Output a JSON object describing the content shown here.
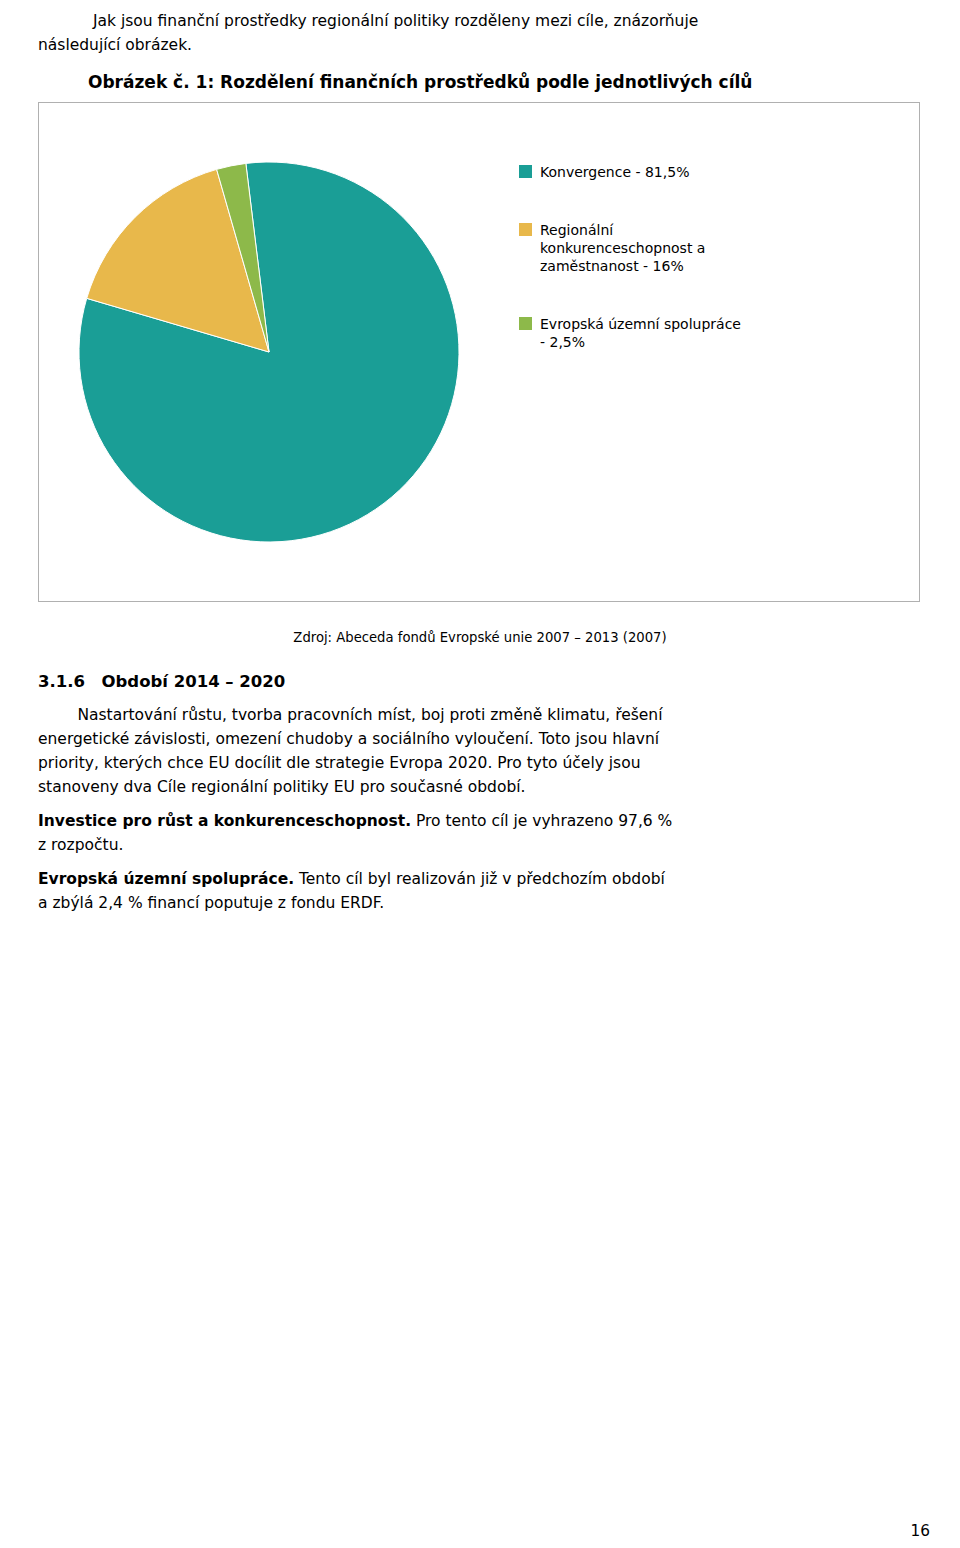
{
  "chart_data": {
    "type": "pie",
    "title": "Obrázek č. 1: Rozdělení finančních prostředků podle jednotlivých cílů",
    "categories": [
      "Konvergence - 81,5%",
      "Regionální konkurenceschopnost a zaměstnanost - 16%",
      "Evropská územní spolupráce - 2,5%"
    ],
    "values": [
      81.5,
      16.0,
      2.5
    ],
    "colors": [
      "#1a9e96",
      "#e8b84b",
      "#8db94a"
    ],
    "legend": "right",
    "annotations": [
      "Jak jsou finanční prostředky regionální politiky rozděleny mezi cíle, znázorňuje",
      "následující obrázek.",
      "Zdroj: Abeceda fondů Evropské unie 2007 – 2013 (2007)",
      "3.1.6",
      "  Období 2014 – 2020",
      "        Nastartování růstu, tvorba pracovních míst, boj proti změně klimatu, řešení",
      "energetické závislosti, omezení chudoby a sociálního vyloučení. Toto jsou hlavní",
      "priority, kterých chce EU docílit dle strategie Evropa 2020. Pro tyto účely jsou",
      "stanoveny dva Cíle regionální politiky EU pro současné období.",
      "Investice pro růst a konkurenceschopnost.",
      " Pro tento cíl je vyhrazeno 97,6 %",
      "z rozpočtu.",
      "Evropská územní spolupráce.",
      " Tento cíl byl realizován již v předchozím období",
      "a zbýlá 2,4 % financí poputuje z fondu ERDF.",
      "16"
    ]
  }
}
